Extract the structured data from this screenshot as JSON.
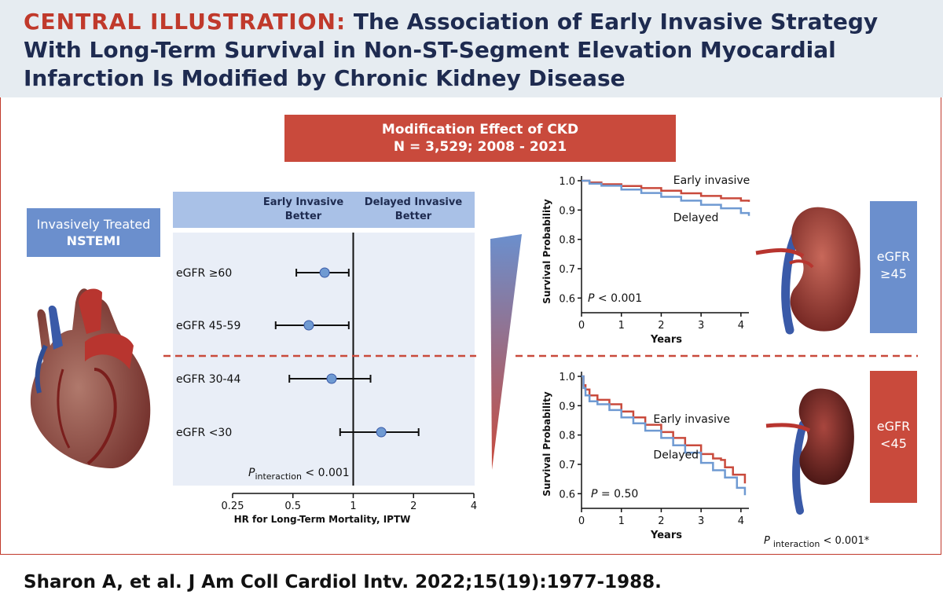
{
  "figure": {
    "title_lead": "CENTRAL ILLUSTRATION:",
    "title_rest": " The Association of Early Invasive Strategy With Long-Term Survival in Non-ST-Segment Elevation Myocardial Infarction Is Modified by Chronic Kidney Disease",
    "citation": "Sharon A, et al. J Am Coll Cardiol Intv. 2022;15(19):1977-1988."
  },
  "modification_box": {
    "line1": "Modification Effect of CKD",
    "line2": "N = 3,529; 2008 - 2021"
  },
  "left_box": {
    "line1": "Invasively Treated",
    "line2": "NSTEMI"
  },
  "egfr_high_box": {
    "line1": "eGFR",
    "line2": "≥45"
  },
  "egfr_low_box": {
    "line1": "eGFR",
    "line2": "<45"
  },
  "colors": {
    "red": "#c94a3c",
    "blue": "#6b8fcd",
    "navy": "#1e2b50",
    "panel_bg": "#e9eef7",
    "header_bg": "#e6ecf1"
  },
  "icons": [
    "heart-illustration",
    "kidney-illustration",
    "gradient-wedge"
  ],
  "chart_data": [
    {
      "type": "forest",
      "header_left": [
        "Early Invasive",
        "Better"
      ],
      "header_right": [
        "Delayed Invasive",
        "Better"
      ],
      "xlabel": "HR for Long-Term Mortality, IPTW",
      "x_scale": "log",
      "xlim": [
        0.25,
        4
      ],
      "ticks": [
        {
          "value": 0.25,
          "label": "0.25"
        },
        {
          "value": 0.5,
          "label": "0.5"
        },
        {
          "value": 1,
          "label": "1"
        },
        {
          "value": 2,
          "label": "2"
        },
        {
          "value": 4,
          "label": "4"
        }
      ],
      "rows": [
        {
          "label": "eGFR ≥60",
          "hr": 0.72,
          "lo": 0.52,
          "hi": 0.95
        },
        {
          "label": "eGFR 45-59",
          "hr": 0.6,
          "lo": 0.41,
          "hi": 0.95
        },
        {
          "label": "eGFR 30-44",
          "hr": 0.78,
          "lo": 0.48,
          "hi": 1.22
        },
        {
          "label": "eGFR <30",
          "hr": 1.38,
          "lo": 0.86,
          "hi": 2.12
        }
      ],
      "p_prefix": "P",
      "p_sub": "interaction",
      "p_value": " < 0.001"
    },
    {
      "type": "line",
      "ylabel": "Survival Probability",
      "xlabel": "Years",
      "xlim": [
        0,
        4.2
      ],
      "ylim": [
        0.55,
        1.0
      ],
      "xticks": [
        0,
        1,
        2,
        3,
        4
      ],
      "yticks": [
        "1.0",
        "0.9",
        "0.8",
        "0.7",
        "0.6"
      ],
      "p_prefix": "P",
      "p_value": " < 0.001",
      "series": [
        {
          "name": "Early invasive",
          "color": "#c94a3c",
          "x": [
            0,
            0.2,
            0.5,
            1,
            1.5,
            2,
            2.5,
            3,
            3.5,
            4,
            4.2
          ],
          "y": [
            1.0,
            0.994,
            0.988,
            0.982,
            0.975,
            0.966,
            0.957,
            0.948,
            0.94,
            0.932,
            0.928
          ]
        },
        {
          "name": "Delayed",
          "color": "#6f9ad2",
          "x": [
            0,
            0.2,
            0.5,
            1,
            1.5,
            2,
            2.5,
            3,
            3.5,
            4,
            4.2
          ],
          "y": [
            1.0,
            0.99,
            0.983,
            0.97,
            0.958,
            0.945,
            0.932,
            0.918,
            0.906,
            0.89,
            0.88
          ]
        }
      ],
      "series_label_positions": [
        "above",
        "below"
      ]
    },
    {
      "type": "line",
      "ylabel": "Survival Probability",
      "xlabel": "Years",
      "xlim": [
        0,
        4.2
      ],
      "ylim": [
        0.55,
        1.0
      ],
      "xticks": [
        0,
        1,
        2,
        3,
        4
      ],
      "yticks": [
        "1.0",
        "0.9",
        "0.8",
        "0.7",
        "0.6"
      ],
      "p_prefix": "P",
      "p_value": " = 0.50",
      "series": [
        {
          "name": "Early invasive",
          "color": "#c94a3c",
          "x": [
            0,
            0.05,
            0.1,
            0.2,
            0.4,
            0.7,
            1.0,
            1.3,
            1.6,
            2.0,
            2.3,
            2.6,
            3.0,
            3.3,
            3.5,
            3.6,
            3.8,
            4.1
          ],
          "y": [
            1.0,
            0.97,
            0.955,
            0.935,
            0.92,
            0.905,
            0.88,
            0.86,
            0.835,
            0.81,
            0.79,
            0.765,
            0.735,
            0.72,
            0.715,
            0.69,
            0.665,
            0.635
          ]
        },
        {
          "name": "Delayed",
          "color": "#6f9ad2",
          "x": [
            0,
            0.05,
            0.1,
            0.2,
            0.4,
            0.7,
            1.0,
            1.3,
            1.6,
            2.0,
            2.3,
            2.6,
            3.0,
            3.3,
            3.6,
            3.9,
            4.1
          ],
          "y": [
            1.0,
            0.96,
            0.935,
            0.915,
            0.905,
            0.885,
            0.86,
            0.84,
            0.815,
            0.79,
            0.765,
            0.74,
            0.705,
            0.68,
            0.655,
            0.62,
            0.595
          ]
        }
      ],
      "series_label_positions": [
        "above",
        "below"
      ]
    }
  ],
  "overall_p": {
    "prefix": "P",
    "sub": "interaction",
    "value": " < 0.001*"
  }
}
